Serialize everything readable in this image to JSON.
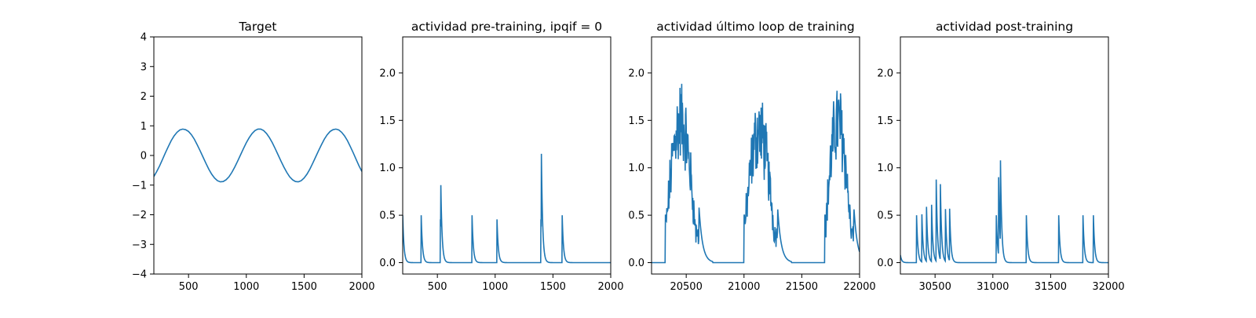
{
  "figure": {
    "line_color": "#1f77b4"
  },
  "chart_data": [
    {
      "type": "line",
      "title": "Target",
      "xlim": [
        200,
        2000
      ],
      "ylim": [
        -4,
        4
      ],
      "xticks": [
        "500",
        "1000",
        "1500",
        "2000"
      ],
      "yticks": [
        "−4",
        "−3",
        "−2",
        "−1",
        "0",
        "1",
        "2",
        "3",
        "4"
      ],
      "series": [
        {
          "x": [
            200,
            225,
            250,
            275,
            300,
            325,
            350,
            375,
            400,
            425,
            450,
            475,
            500,
            525,
            550,
            575,
            600,
            625,
            650,
            675,
            700,
            725,
            750,
            775,
            800,
            825,
            850,
            875,
            900,
            925,
            950,
            975,
            1000,
            1025,
            1050,
            1075,
            1100,
            1125,
            1150,
            1175,
            1200,
            1225,
            1250,
            1275,
            1300,
            1325,
            1350,
            1375,
            1400,
            1425,
            1450,
            1475,
            1500,
            1525,
            1550,
            1575,
            1600,
            1625,
            1650,
            1675,
            1700,
            1725,
            1750,
            1775,
            1800,
            1825,
            1850,
            1875,
            1900,
            1925,
            1950,
            1975,
            2000
          ],
          "y": [
            -0.71,
            -0.54,
            -0.35,
            -0.13,
            0.09,
            0.3,
            0.5,
            0.66,
            0.78,
            0.86,
            0.89,
            0.87,
            0.81,
            0.7,
            0.55,
            0.36,
            0.16,
            -0.05,
            -0.26,
            -0.46,
            -0.63,
            -0.76,
            -0.85,
            -0.89,
            -0.88,
            -0.82,
            -0.72,
            -0.57,
            -0.39,
            -0.19,
            0.02,
            0.23,
            0.43,
            0.6,
            0.74,
            0.84,
            0.89,
            0.89,
            0.84,
            0.74,
            0.6,
            0.43,
            0.23,
            0.02,
            -0.19,
            -0.39,
            -0.57,
            -0.72,
            -0.82,
            -0.88,
            -0.89,
            -0.85,
            -0.76,
            -0.63,
            -0.46,
            -0.26,
            -0.05,
            0.16,
            0.36,
            0.55,
            0.7,
            0.81,
            0.87,
            0.89,
            0.86,
            0.78,
            0.66,
            0.5,
            0.3,
            0.09,
            -0.13,
            -0.35,
            -0.54
          ]
        }
      ]
    },
    {
      "type": "line",
      "title": "actividad pre-training, ipqif = 0",
      "xlim": [
        200,
        2000
      ],
      "ylim": [
        -0.12,
        2.38
      ],
      "xticks": [
        "500",
        "1000",
        "1500",
        "2000"
      ],
      "yticks": [
        "0.0",
        "0.5",
        "1.0",
        "1.5",
        "2.0"
      ],
      "spikes": [
        [
          200,
          0.5
        ],
        [
          360,
          0.5
        ],
        [
          525,
          0.5
        ],
        [
          530,
          0.5
        ],
        [
          800,
          0.5
        ],
        [
          1015,
          0.5
        ],
        [
          1395,
          0.5
        ],
        [
          1400,
          0.83
        ],
        [
          1580,
          0.5
        ]
      ]
    },
    {
      "type": "line",
      "title": "actividad último loop de training",
      "xlim": [
        20200,
        22000
      ],
      "ylim": [
        -0.12,
        2.38
      ],
      "xticks": [
        "20500",
        "21000",
        "21500",
        "22000"
      ],
      "yticks": [
        "0.0",
        "0.5",
        "1.0",
        "1.5",
        "2.0"
      ],
      "bursts": [
        {
          "start": 20320,
          "end": 20610,
          "peak": 1.8
        },
        {
          "start": 21000,
          "end": 21290,
          "peak": 1.65
        },
        {
          "start": 21700,
          "end": 21950,
          "peak": 1.78
        }
      ]
    },
    {
      "type": "line",
      "title": "actividad post-training",
      "xlim": [
        30200,
        32000
      ],
      "ylim": [
        -0.12,
        2.38
      ],
      "xticks": [
        "30500",
        "31000",
        "31500",
        "32000"
      ],
      "yticks": [
        "0.0",
        "0.5",
        "1.0",
        "1.5",
        "2.0"
      ],
      "spikes": [
        [
          30200,
          0.08
        ],
        [
          30340,
          0.5
        ],
        [
          30385,
          0.55
        ],
        [
          30425,
          0.63
        ],
        [
          30470,
          0.6
        ],
        [
          30510,
          0.86
        ],
        [
          30545,
          0.87
        ],
        [
          30590,
          0.55
        ],
        [
          30625,
          0.6
        ],
        [
          31030,
          0.5
        ],
        [
          31050,
          0.82
        ],
        [
          31065,
          0.95
        ],
        [
          31290,
          0.5
        ],
        [
          31570,
          0.5
        ],
        [
          31780,
          0.5
        ],
        [
          31870,
          0.5
        ]
      ]
    }
  ]
}
